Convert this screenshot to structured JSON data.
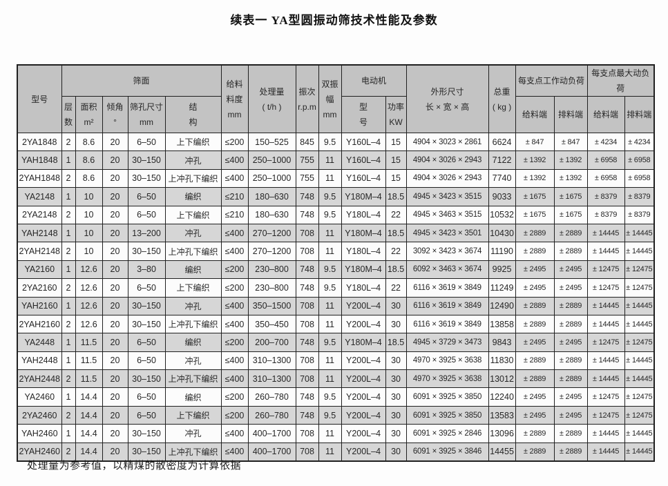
{
  "page": {
    "title": "续表一 YA型圆振动筛技术性能及参数",
    "footnote": "处理量为参考值，以精煤的散密度为计算依据"
  },
  "theme": {
    "page_bg": "#fdfdfd",
    "header_bg": "#c3c3c3",
    "row_alt_bg": "#d6d6d6",
    "border": "#1f1f1f",
    "text": "#262626"
  },
  "table": {
    "header": {
      "model": "型号",
      "screen_group": "筛面",
      "layers": "层\n数",
      "area": "面积\nm²",
      "angle": "倾角\n°",
      "mesh_size": "筛孔尺寸\nmm",
      "structure": "结\n构",
      "feed_size": "给料\n料度\nmm",
      "capacity": "处理量\n( t/h )",
      "frequency": "振次\nr.p.m",
      "amplitude": "双振\n幅\nmm",
      "motor_group": "电动机",
      "motor_model": "型\n号",
      "motor_power": "功率\nKW",
      "dimensions": "外形尺寸\n长 × 宽 × 高",
      "weight": "总重\n( kg )",
      "working_load_group": "每支点工作动负荷",
      "max_load_group": "每支点最大动负荷",
      "feed_end": "给料端",
      "discharge_end": "排料端"
    },
    "rows": [
      [
        "2YA1848",
        "2",
        "8.6",
        "20",
        "6–50",
        "上下编织",
        "≤200",
        "150–525",
        "845",
        "9.5",
        "Y160L–4",
        "15",
        "4904 × 3023 × 2861",
        "6624",
        "± 847",
        "± 847",
        "± 4234",
        "± 4234"
      ],
      [
        "YAH1848",
        "1",
        "8.6",
        "20",
        "30–150",
        "冲孔",
        "≤400",
        "250–1000",
        "755",
        "11",
        "Y160L–4",
        "15",
        "4904 × 3026 × 2943",
        "7122",
        "± 1392",
        "± 1392",
        "± 6958",
        "± 6958"
      ],
      [
        "2YAH1848",
        "2",
        "8.6",
        "20",
        "30–150",
        "上冲孔下编织",
        "≤400",
        "250–1000",
        "755",
        "11",
        "Y160L–4",
        "15",
        "4904 × 3026 × 2943",
        "7740",
        "± 1392",
        "± 1392",
        "± 6958",
        "± 6958"
      ],
      [
        "YA2148",
        "1",
        "10",
        "20",
        "6–50",
        "编织",
        "≤210",
        "180–630",
        "748",
        "9.5",
        "Y180M–4",
        "18.5",
        "4945 × 3423 × 3515",
        "9033",
        "± 1675",
        "± 1675",
        "± 8379",
        "± 8379"
      ],
      [
        "2YA2148",
        "2",
        "10",
        "20",
        "6–50",
        "上下编织",
        "≤210",
        "180–630",
        "748",
        "9.5",
        "Y180L–4",
        "22",
        "4945 × 3463 × 3515",
        "10532",
        "± 1675",
        "± 1675",
        "± 8379",
        "± 8379"
      ],
      [
        "YAH2148",
        "1",
        "10",
        "20",
        "13–200",
        "冲孔",
        "≤400",
        "270–1200",
        "708",
        "11",
        "Y180M–4",
        "18.5",
        "4945 × 3423 × 3501",
        "10430",
        "± 2889",
        "± 2889",
        "± 14445",
        "± 14445"
      ],
      [
        "2YAH2148",
        "2",
        "10",
        "20",
        "30–150",
        "上冲孔下编织",
        "≤400",
        "270–1200",
        "708",
        "11",
        "Y180L–4",
        "22",
        "3092 × 3423 × 3674",
        "11190",
        "± 2889",
        "± 2889",
        "± 14445",
        "± 14445"
      ],
      [
        "YA2160",
        "1",
        "12.6",
        "20",
        "3–80",
        "编织",
        "≤200",
        "230–800",
        "748",
        "9.5",
        "Y180M–4",
        "18.5",
        "6092 × 3463 × 3674",
        "9925",
        "± 2495",
        "± 2495",
        "± 12475",
        "± 12475"
      ],
      [
        "2YA2160",
        "2",
        "12.6",
        "20",
        "6–50",
        "上下编织",
        "≤200",
        "230–800",
        "748",
        "9.5",
        "Y180L–4",
        "22",
        "6116 × 3619 × 3849",
        "11249",
        "± 2495",
        "± 2495",
        "± 12475",
        "± 12475"
      ],
      [
        "YAH2160",
        "1",
        "12.6",
        "20",
        "30–150",
        "冲孔",
        "≤400",
        "350–1500",
        "708",
        "11",
        "Y200L–4",
        "30",
        "6116 × 3619 × 3849",
        "12490",
        "± 2889",
        "± 2889",
        "± 14445",
        "± 14445"
      ],
      [
        "2YAH2160",
        "2",
        "12.6",
        "20",
        "30–150",
        "上冲孔下编织",
        "≤400",
        "350–450",
        "708",
        "11",
        "Y200L–4",
        "30",
        "6116 × 3619 × 3849",
        "13858",
        "± 2889",
        "± 2889",
        "± 14445",
        "± 14445"
      ],
      [
        "YA2448",
        "1",
        "11.5",
        "20",
        "6–50",
        "编织",
        "≤200",
        "200–700",
        "748",
        "9.5",
        "Y180M–4",
        "18.5",
        "4945 × 3729 × 3473",
        "9843",
        "± 2495",
        "± 2495",
        "± 12475",
        "± 12475"
      ],
      [
        "YAH2448",
        "1",
        "11.5",
        "20",
        "6–50",
        "冲孔",
        "≤400",
        "310–1300",
        "708",
        "11",
        "Y200L–4",
        "30",
        "4970 × 3925 × 3638",
        "11830",
        "± 2889",
        "± 2889",
        "± 14445",
        "± 14445"
      ],
      [
        "2YAH2448",
        "2",
        "11.5",
        "20",
        "30–150",
        "上冲孔下编织",
        "≤400",
        "310–1300",
        "708",
        "11",
        "Y200L–4",
        "30",
        "4970 × 3925 × 3638",
        "13012",
        "± 2889",
        "± 2889",
        "± 14445",
        "± 14445"
      ],
      [
        "YA2460",
        "1",
        "14.4",
        "20",
        "6–50",
        "编织",
        "≤200",
        "260–780",
        "748",
        "9.5",
        "Y200L–4",
        "30",
        "6091 × 3925 × 3850",
        "12240",
        "± 2495",
        "± 2495",
        "± 12475",
        "± 12475"
      ],
      [
        "2YA2460",
        "2",
        "14.4",
        "20",
        "6–50",
        "上下编织",
        "≤200",
        "260–780",
        "748",
        "9.5",
        "Y200L–4",
        "30",
        "6091 × 3925 × 3850",
        "13583",
        "± 2495",
        "± 2495",
        "± 12475",
        "± 12475"
      ],
      [
        "YAH2460",
        "1",
        "14.4",
        "20",
        "30–150",
        "冲孔",
        "≤400",
        "400–1700",
        "708",
        "11",
        "Y200L–4",
        "30",
        "6091 × 3925 × 2846",
        "13096",
        "± 2889",
        "± 2889",
        "± 14445",
        "± 14445"
      ],
      [
        "2YAH2460",
        "2",
        "14.4",
        "20",
        "30–150",
        "上冲孔下编织",
        "≤400",
        "400–1700",
        "708",
        "11",
        "Y200L–4",
        "30",
        "6091 × 3925 × 3846",
        "14455",
        "± 2889",
        "± 2889",
        "± 14445",
        "± 14445"
      ]
    ]
  }
}
